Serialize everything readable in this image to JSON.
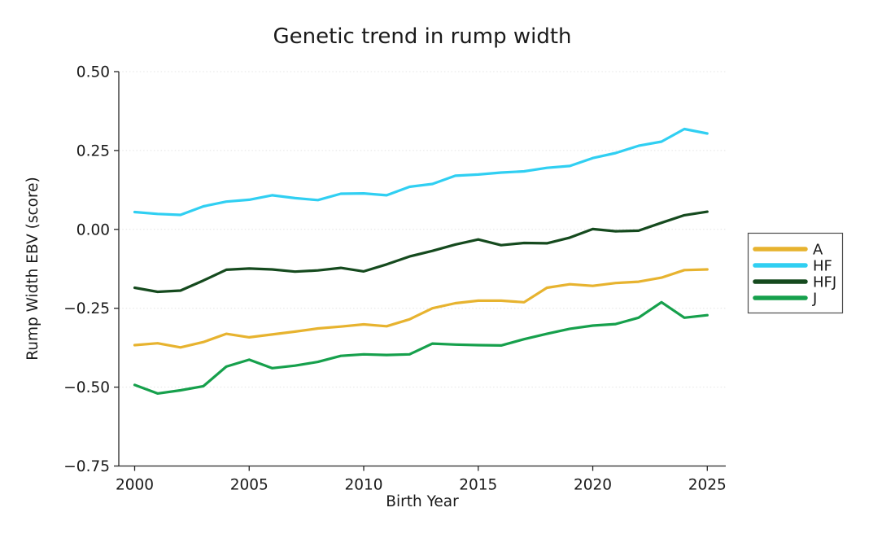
{
  "chart": {
    "title": "Genetic trend in rump width",
    "xlabel": "Birth Year",
    "ylabel": "Rump Width EBV (score)"
  },
  "chart_data": {
    "type": "line",
    "title": "Genetic trend in rump width",
    "xlabel": "Birth Year",
    "ylabel": "Rump Width EBV (score)",
    "x_ticks": [
      2000,
      2005,
      2010,
      2015,
      2020,
      2025
    ],
    "y_ticks": [
      0.5,
      0.25,
      0.0,
      -0.25,
      -0.5,
      -0.75
    ],
    "xlim": [
      2000,
      2025
    ],
    "ylim": [
      -0.75,
      0.5
    ],
    "grid": "faint dotted horizontal gridlines at y ticks",
    "legend_position": "outside right, boxed",
    "axis_color": "#262626",
    "grid_color": "#e4e4e4",
    "x": [
      2000,
      2001,
      2002,
      2003,
      2004,
      2005,
      2006,
      2007,
      2008,
      2009,
      2010,
      2011,
      2012,
      2013,
      2014,
      2015,
      2016,
      2017,
      2018,
      2019,
      2020,
      2021,
      2022,
      2023,
      2024,
      2025
    ],
    "series": [
      {
        "name": "A",
        "color": "#E7B32F",
        "values": [
          -0.367,
          -0.361,
          -0.374,
          -0.357,
          -0.331,
          -0.342,
          -0.333,
          -0.324,
          -0.314,
          -0.308,
          -0.301,
          -0.307,
          -0.285,
          -0.25,
          -0.234,
          -0.226,
          -0.226,
          -0.231,
          -0.185,
          -0.174,
          -0.179,
          -0.17,
          -0.166,
          -0.153,
          -0.129,
          -0.127
        ]
      },
      {
        "name": "HF",
        "color": "#30CFF2",
        "values": [
          0.055,
          0.049,
          0.046,
          0.073,
          0.088,
          0.094,
          0.108,
          0.099,
          0.093,
          0.113,
          0.114,
          0.108,
          0.135,
          0.144,
          0.17,
          0.174,
          0.18,
          0.184,
          0.195,
          0.201,
          0.226,
          0.242,
          0.265,
          0.278,
          0.318,
          0.304
        ]
      },
      {
        "name": "HFJ",
        "color": "#154A1E",
        "values": [
          -0.185,
          -0.198,
          -0.194,
          -0.162,
          -0.128,
          -0.124,
          -0.127,
          -0.134,
          -0.13,
          -0.122,
          -0.133,
          -0.111,
          -0.086,
          -0.068,
          -0.048,
          -0.032,
          -0.05,
          -0.043,
          -0.044,
          -0.026,
          0.001,
          -0.006,
          -0.004,
          0.021,
          0.045,
          0.056
        ]
      },
      {
        "name": "J",
        "color": "#16A04C",
        "values": [
          -0.493,
          -0.52,
          -0.51,
          -0.497,
          -0.435,
          -0.413,
          -0.44,
          -0.432,
          -0.42,
          -0.401,
          -0.396,
          -0.398,
          -0.396,
          -0.362,
          -0.365,
          -0.367,
          -0.368,
          -0.348,
          -0.331,
          -0.315,
          -0.305,
          -0.3,
          -0.28,
          -0.231,
          -0.28,
          -0.272
        ]
      }
    ]
  }
}
